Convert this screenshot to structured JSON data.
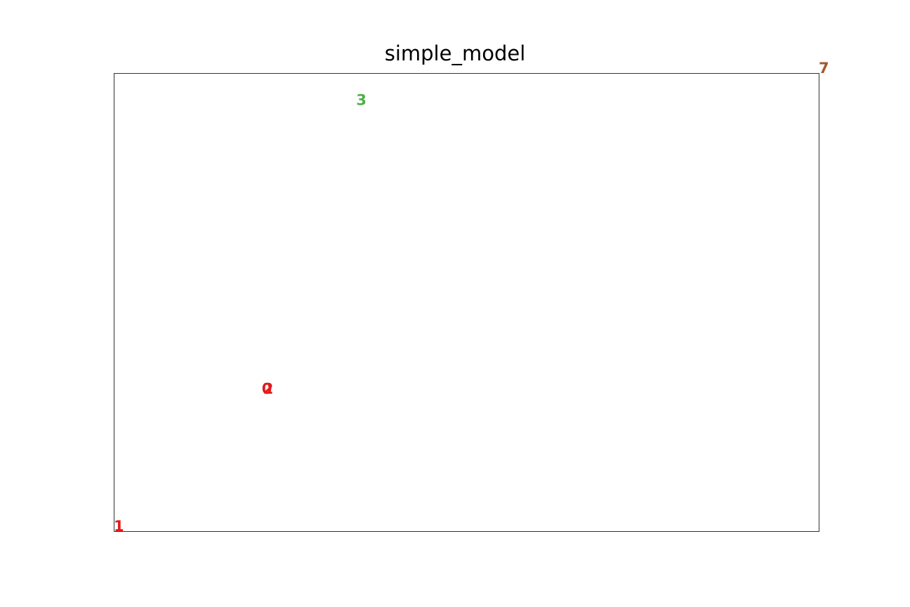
{
  "chart_data": {
    "type": "scatter",
    "title": "simple_model",
    "xlabel": "",
    "ylabel": "",
    "axes_visible": false,
    "grid": false,
    "xlim": [
      0,
      1
    ],
    "ylim": [
      0,
      1
    ],
    "points": [
      {
        "label": "0",
        "x": 0.21,
        "y": 0.3,
        "color": "#e41a1c"
      },
      {
        "label": "1",
        "x": 0.0,
        "y": 0.0,
        "color": "#e41a1c"
      },
      {
        "label": "2",
        "x": 0.212,
        "y": 0.3,
        "color": "#e41a1c"
      },
      {
        "label": "3",
        "x": 0.344,
        "y": 0.93,
        "color": "#4daf4a"
      },
      {
        "label": "7",
        "x": 1.0,
        "y": 1.0,
        "color": "#a65628"
      }
    ]
  }
}
